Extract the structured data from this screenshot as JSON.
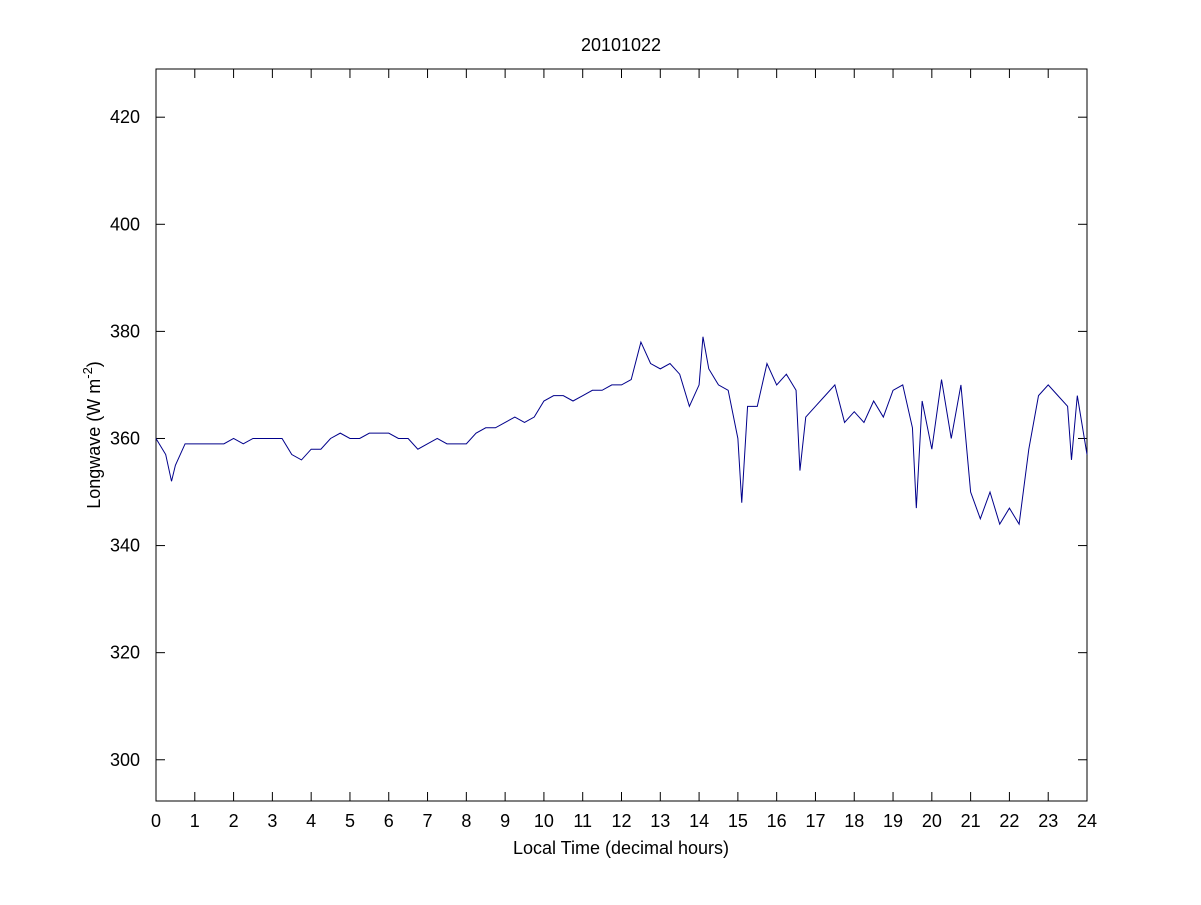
{
  "chart_data": {
    "type": "line",
    "title": "20101022",
    "xlabel": "Local Time (decimal hours)",
    "ylabel": {
      "text": "Longwave (W m",
      "sup": "-2",
      "end": ")"
    },
    "xlim": [
      0,
      24
    ],
    "xticks": [
      0,
      1,
      2,
      3,
      4,
      5,
      6,
      7,
      8,
      9,
      10,
      11,
      12,
      13,
      14,
      15,
      16,
      17,
      18,
      19,
      20,
      21,
      22,
      23,
      24
    ],
    "ylim": [
      292.3,
      429
    ],
    "yticks": [
      300,
      320,
      340,
      360,
      380,
      400,
      420
    ],
    "grid": false,
    "series": [
      {
        "color": "#00008b",
        "x": [
          0,
          0.25,
          0.4,
          0.5,
          0.75,
          1,
          1.25,
          1.5,
          1.75,
          2,
          2.25,
          2.5,
          2.75,
          3,
          3.25,
          3.5,
          3.75,
          4,
          4.25,
          4.5,
          4.75,
          5,
          5.25,
          5.5,
          5.75,
          6,
          6.25,
          6.5,
          6.75,
          7,
          7.25,
          7.5,
          7.75,
          8,
          8.25,
          8.5,
          8.75,
          9,
          9.25,
          9.5,
          9.75,
          10,
          10.25,
          10.5,
          10.75,
          11,
          11.25,
          11.5,
          11.75,
          12,
          12.25,
          12.5,
          12.75,
          13,
          13.25,
          13.5,
          13.75,
          14,
          14.1,
          14.25,
          14.5,
          14.75,
          15,
          15.1,
          15.25,
          15.5,
          15.75,
          16,
          16.25,
          16.5,
          16.6,
          16.75,
          17,
          17.25,
          17.5,
          17.75,
          18,
          18.25,
          18.5,
          18.75,
          19,
          19.25,
          19.5,
          19.6,
          19.75,
          20,
          20.25,
          20.5,
          20.75,
          21,
          21.25,
          21.5,
          21.75,
          22,
          22.25,
          22.5,
          22.75,
          23,
          23.25,
          23.5,
          23.6,
          23.75,
          24
        ],
        "values": [
          360,
          357,
          352,
          355,
          359,
          359,
          359,
          359,
          359,
          360,
          359,
          360,
          360,
          360,
          360,
          357,
          356,
          358,
          358,
          360,
          361,
          360,
          360,
          361,
          361,
          361,
          360,
          360,
          358,
          359,
          360,
          359,
          359,
          359,
          361,
          362,
          362,
          363,
          364,
          363,
          364,
          367,
          368,
          368,
          367,
          368,
          369,
          369,
          370,
          370,
          371,
          378,
          374,
          373,
          374,
          372,
          366,
          370,
          379,
          373,
          370,
          369,
          360,
          348,
          366,
          366,
          374,
          370,
          372,
          369,
          354,
          364,
          366,
          368,
          370,
          363,
          365,
          363,
          367,
          364,
          369,
          370,
          362,
          347,
          367,
          358,
          371,
          360,
          370,
          350,
          345,
          350,
          344,
          347,
          344,
          358,
          368,
          370,
          368,
          366,
          356,
          368,
          357
        ]
      }
    ]
  }
}
